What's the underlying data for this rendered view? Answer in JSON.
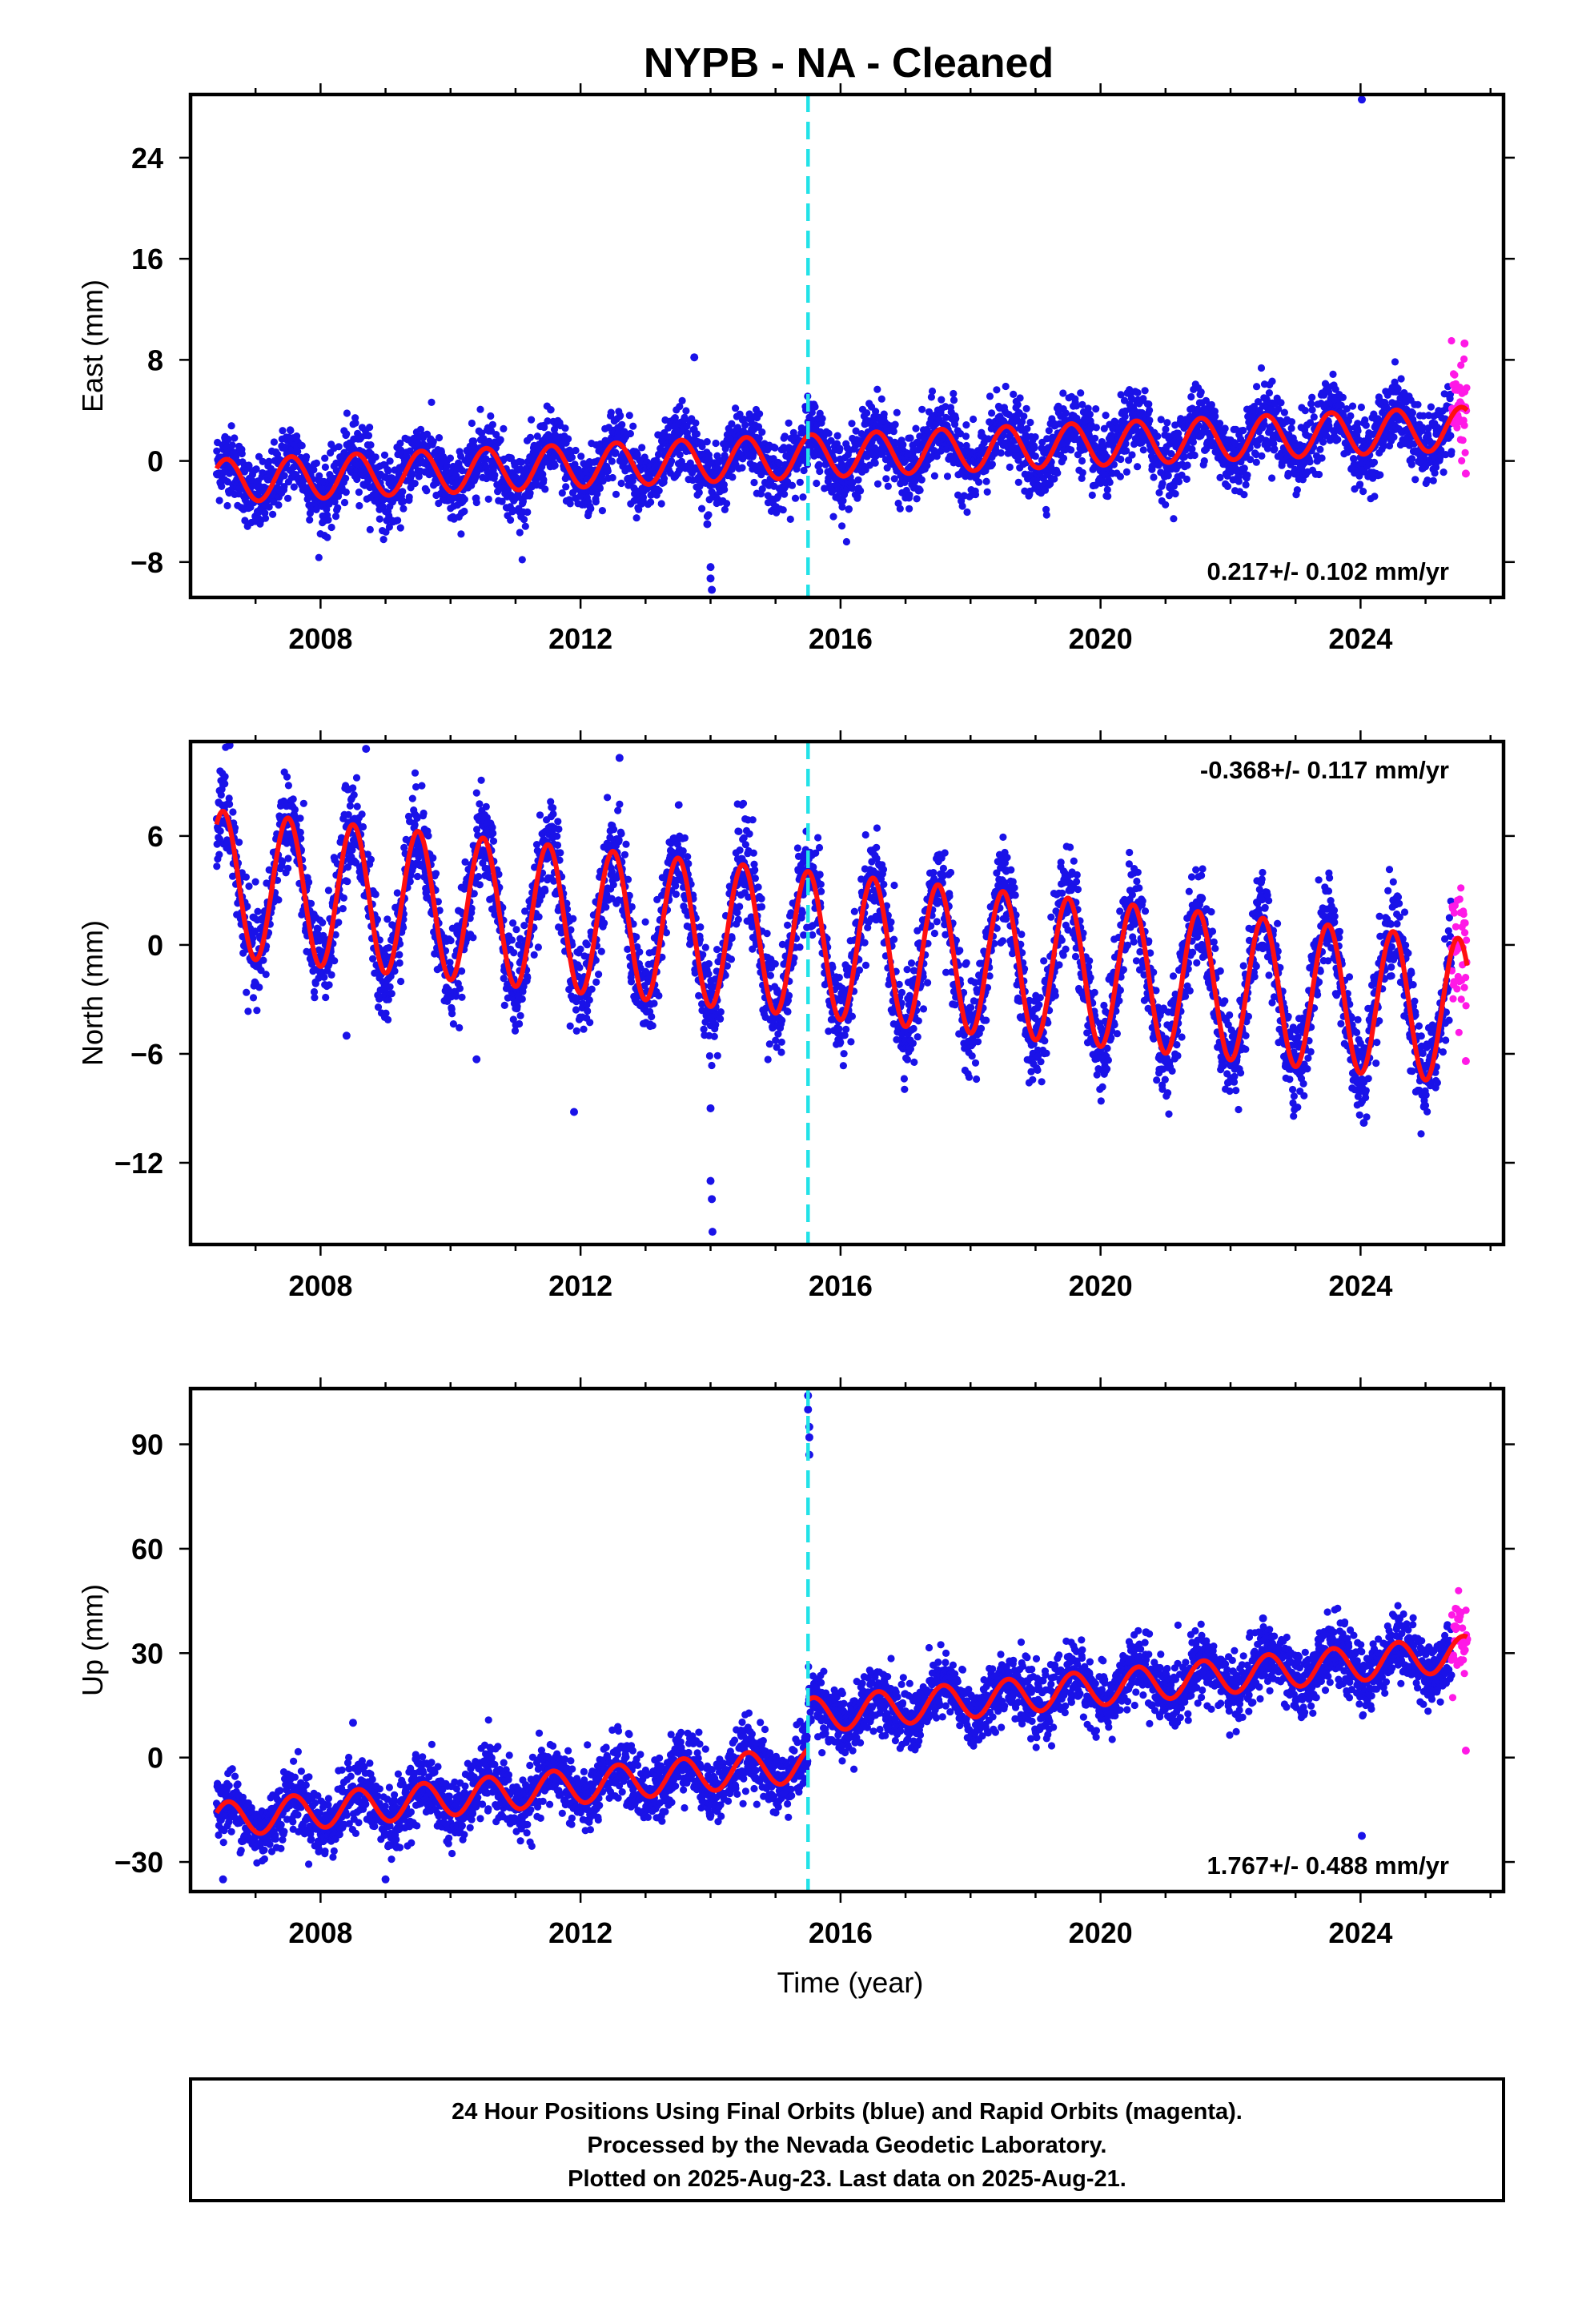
{
  "title": "NYPB  - NA - Cleaned",
  "colors": {
    "final_orbits": "#1a12e8",
    "rapid_orbits": "#ff19e6",
    "model": "#ff1010",
    "offset_marker": "#22e2e8",
    "frame": "#000000"
  },
  "chart_data": [
    {
      "type": "scatter",
      "component": "east",
      "ylabel": "East (mm)",
      "xlabel": "",
      "xlim": [
        2006.0,
        2026.2
      ],
      "ylim": [
        -10.8,
        29.0
      ],
      "x_ticks": [
        2008,
        2012,
        2016,
        2020,
        2024
      ],
      "y_ticks": [
        -8,
        0,
        8,
        16,
        24
      ],
      "offset_epoch": 2015.5,
      "data_start": 2006.4,
      "data_end": 2025.64,
      "rapid_start": 2025.4,
      "rate_text": "0.217+/- 0.102 mm/yr",
      "rate_position": "bottom-right",
      "trend": {
        "level_at_start": -1.6,
        "rate": 0.217,
        "annual_amplitude": 1.7,
        "annual_peak_fraction": 0.55,
        "noise_std": 1.4
      },
      "outliers": [
        {
          "x": 2024.02,
          "y": 28.6
        },
        {
          "x": 2013.75,
          "y": 8.2
        },
        {
          "x": 2013.95,
          "y": -5.0
        },
        {
          "x": 2014.0,
          "y": -8.4
        },
        {
          "x": 2014.0,
          "y": -9.3
        },
        {
          "x": 2014.02,
          "y": -10.2
        },
        {
          "x": 2025.6,
          "y": 9.3
        },
        {
          "x": 2025.62,
          "y": -1.0
        }
      ]
    },
    {
      "type": "scatter",
      "component": "north",
      "ylabel": "North (mm)",
      "xlabel": "",
      "xlim": [
        2006.0,
        2026.2
      ],
      "ylim": [
        -16.5,
        11.2
      ],
      "x_ticks": [
        2008,
        2012,
        2016,
        2020,
        2024
      ],
      "y_ticks": [
        -12,
        -6,
        0,
        6
      ],
      "offset_epoch": 2015.5,
      "data_start": 2006.4,
      "data_end": 2025.64,
      "rapid_start": 2025.4,
      "rate_text": "-0.368+/- 0.117 mm/yr",
      "rate_position": "top-right",
      "trend": {
        "level_at_start": 3.4,
        "rate": -0.368,
        "annual_amplitude": 4.0,
        "annual_peak_fraction": 0.5,
        "noise_std": 1.3
      },
      "outliers": [
        {
          "x": 2006.6,
          "y": 11.0
        },
        {
          "x": 2008.7,
          "y": 10.8
        },
        {
          "x": 2012.6,
          "y": 10.3
        },
        {
          "x": 2014.0,
          "y": -9.0
        },
        {
          "x": 2014.0,
          "y": -13.0
        },
        {
          "x": 2014.02,
          "y": -14.0
        },
        {
          "x": 2014.03,
          "y": -15.8
        },
        {
          "x": 2011.9,
          "y": -9.2
        },
        {
          "x": 2010.4,
          "y": -6.3
        },
        {
          "x": 2008.4,
          "y": -5.0
        },
        {
          "x": 2024.05,
          "y": -9.8
        },
        {
          "x": 2025.62,
          "y": -6.4
        }
      ]
    },
    {
      "type": "scatter",
      "component": "up",
      "ylabel": "Up (mm)",
      "xlabel": "Time (year)",
      "xlim": [
        2006.0,
        2026.2
      ],
      "ylim": [
        -38.5,
        106.0
      ],
      "x_ticks": [
        2008,
        2012,
        2016,
        2020,
        2024
      ],
      "y_ticks": [
        -30,
        0,
        30,
        60,
        90
      ],
      "offset_epoch": 2015.5,
      "data_start": 2006.4,
      "data_end": 2025.64,
      "rapid_start": 2025.4,
      "rate_text": "1.767+/- 0.488 mm/yr",
      "rate_position": "bottom-right",
      "trend": {
        "level_at_start": -18.0,
        "rate": 1.767,
        "annual_amplitude": 5.0,
        "annual_peak_fraction": 0.58,
        "noise_std": 4.6,
        "step_at_offset": 14.0
      },
      "outliers": [
        {
          "x": 2015.5,
          "y": 104.0
        },
        {
          "x": 2015.5,
          "y": 100.0
        },
        {
          "x": 2015.52,
          "y": 95.0
        },
        {
          "x": 2015.52,
          "y": 92.0
        },
        {
          "x": 2015.52,
          "y": 87.0
        },
        {
          "x": 2024.02,
          "y": -22.5
        },
        {
          "x": 2008.5,
          "y": 10.0
        },
        {
          "x": 2020.7,
          "y": 36.0
        },
        {
          "x": 2022.5,
          "y": 40.0
        },
        {
          "x": 2024.6,
          "y": 40.0
        },
        {
          "x": 2006.5,
          "y": -35.0
        },
        {
          "x": 2009.0,
          "y": -35.0
        },
        {
          "x": 2025.62,
          "y": 2.0
        },
        {
          "x": 2025.64,
          "y": 34.0
        }
      ]
    }
  ],
  "caption": {
    "line1": "24 Hour Positions Using Final Orbits (blue) and Rapid Orbits (magenta).",
    "line2": "Processed by the Nevada Geodetic Laboratory.",
    "line3": "Plotted on 2025-Aug-23. Last data on 2025-Aug-21."
  }
}
